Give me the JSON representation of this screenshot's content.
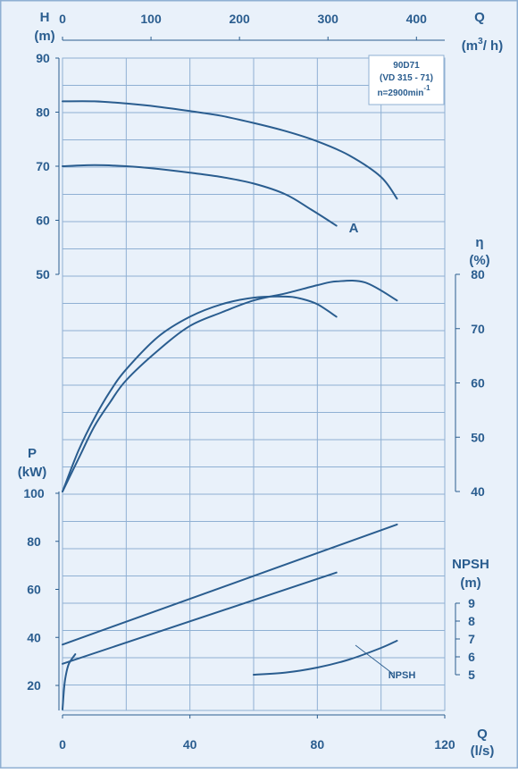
{
  "colors": {
    "background": "#e9f1fa",
    "grid": "#8fb0d3",
    "ink": "#2a5d8f",
    "curve": "#2a5d8f",
    "border": "#8fb0d3"
  },
  "info_box": {
    "line1": "90D71",
    "line2": "(VD 315 - 71)",
    "line3": "n=2900min",
    "line3_sup": "-1"
  },
  "axes": {
    "H": {
      "label": "H",
      "unit": "(m)",
      "ticks": [
        "90",
        "80",
        "70",
        "60",
        "50"
      ]
    },
    "Q_m3h": {
      "label": "Q",
      "unit_pre": "(m",
      "unit_sup": "3",
      "unit_post": "/ h)",
      "ticks": [
        "0",
        "100",
        "200",
        "300",
        "400"
      ]
    },
    "eta": {
      "label": "η",
      "unit": "(%)",
      "ticks": [
        "80",
        "70",
        "60",
        "50",
        "40"
      ]
    },
    "P": {
      "label": "P",
      "unit": "(kW)",
      "ticks": [
        "100",
        "80",
        "60",
        "40",
        "20"
      ]
    },
    "NPSH": {
      "label": "NPSH",
      "unit": "(m)",
      "ticks": [
        "9",
        "8",
        "7",
        "6",
        "5"
      ]
    },
    "Q_ls": {
      "label": "Q",
      "unit": "(l/s)",
      "ticks": [
        "0",
        "40",
        "80",
        "120"
      ]
    }
  },
  "curve_labels": {
    "A": "A",
    "NPSH": "NPSH"
  },
  "chart_data": {
    "type": "line",
    "x_unit": "l/s",
    "x_secondary": {
      "unit": "m3/h",
      "range": [
        0,
        430
      ]
    },
    "xlim": [
      0,
      120
    ],
    "series": [
      {
        "axis": "H",
        "ylim": [
          50,
          90
        ],
        "x": [
          0,
          10,
          20,
          30,
          40,
          50,
          60,
          70,
          80,
          90,
          100,
          105
        ],
        "y": [
          82,
          82,
          81.6,
          81,
          80.2,
          79.3,
          78,
          76.5,
          74.6,
          72,
          68,
          64
        ]
      },
      {
        "axis": "H",
        "ylim": [
          50,
          90
        ],
        "x": [
          0,
          10,
          20,
          30,
          40,
          50,
          60,
          70,
          78,
          86
        ],
        "y": [
          70,
          70.2,
          70,
          69.5,
          68.8,
          68,
          66.8,
          64.8,
          62,
          59
        ]
      },
      {
        "axis": "eta",
        "ylim": [
          40,
          80
        ],
        "x": [
          0,
          5,
          10,
          15,
          20,
          30,
          40,
          50,
          60,
          70,
          80,
          86,
          95,
          105
        ],
        "y": [
          40,
          46,
          52,
          56.5,
          60.5,
          66,
          70.5,
          73,
          75.2,
          76.5,
          78,
          78.7,
          78.5,
          75.2
        ]
      },
      {
        "axis": "eta",
        "ylim": [
          40,
          80
        ],
        "x": [
          0,
          5,
          10,
          15,
          20,
          30,
          40,
          50,
          60,
          70,
          75,
          80,
          86
        ],
        "y": [
          40,
          47.5,
          53.5,
          58.5,
          62.5,
          68.5,
          72.2,
          74.5,
          75.7,
          75.9,
          75.5,
          74.5,
          72.2
        ]
      },
      {
        "axis": "P",
        "ylim": [
          10,
          100
        ],
        "x": [
          0,
          105
        ],
        "y": [
          37,
          87
        ]
      },
      {
        "axis": "P",
        "ylim": [
          10,
          100
        ],
        "x": [
          0,
          86
        ],
        "y": [
          29,
          67
        ]
      },
      {
        "axis": "P",
        "ylim": [
          10,
          100
        ],
        "x": [
          0,
          0.5,
          1,
          2,
          4
        ],
        "y": [
          10,
          19,
          24,
          29,
          33
        ]
      },
      {
        "axis": "NPSH",
        "ylim": [
          5,
          9
        ],
        "x": [
          60,
          70,
          80,
          90,
          100,
          105
        ],
        "y": [
          5,
          5.12,
          5.4,
          5.85,
          6.5,
          6.9
        ]
      }
    ]
  }
}
